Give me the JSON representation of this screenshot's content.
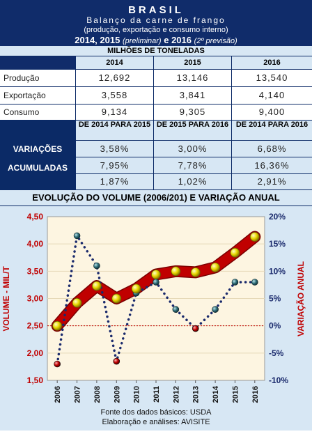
{
  "header": {
    "title": "BRASIL",
    "subtitle": "Balanço da carne de frango",
    "subtitle2": "(produção, exportação e consumo interno)",
    "years_a": "2014, 2015",
    "prelim": "(preliminar)",
    "conj": "e",
    "years_b": "2016",
    "prev": "(2º previsão)",
    "units": "MILHÕES DE TONELADAS"
  },
  "table": {
    "columns": [
      "2014",
      "2015",
      "2016"
    ],
    "rows": [
      {
        "label": "Produção",
        "values": [
          "12,692",
          "13,146",
          "13,540"
        ]
      },
      {
        "label": "Exportação",
        "values": [
          "3,558",
          "3,841",
          "4,140"
        ]
      },
      {
        "label": "Consumo",
        "values": [
          "9,134",
          "9,305",
          "9,400"
        ]
      }
    ],
    "var_headers": [
      "DE 2014 PARA 2015",
      "DE 2015 PARA 2016",
      "DE 2014 PARA 2016"
    ],
    "var_labels": [
      "VARIAÇÕES",
      "ACUMULADAS"
    ],
    "var_rows": [
      [
        "3,58%",
        "3,00%",
        "6,68%"
      ],
      [
        "7,95%",
        "7,78%",
        "16,36%"
      ],
      [
        "1,87%",
        "1,02%",
        "2,91%"
      ]
    ]
  },
  "chart_data": {
    "type": "line",
    "title": "EVOLUÇÃO DO VOLUME (2006/201) E VARIAÇÃO ANUAL",
    "x": [
      "2006",
      "2007",
      "2008",
      "2009",
      "2010",
      "2011",
      "2012",
      "2013",
      "2014",
      "2015",
      "2016"
    ],
    "ylabel": "VOLUME - MIL/T",
    "y2label": "VARIAÇÃO ANUAL",
    "ylim": [
      1.5,
      4.5
    ],
    "y_ticks": [
      "1,50",
      "2,00",
      "2,50",
      "3,00",
      "3,50",
      "4,00",
      "4,50"
    ],
    "y2lim": [
      -10,
      20
    ],
    "y2_ticks": [
      "-10%",
      "-5%",
      "0%",
      "5%",
      "10%",
      "15%",
      "20%"
    ],
    "series": [
      {
        "values": [
          2.5,
          2.92,
          3.23,
          3.0,
          3.18,
          3.44,
          3.5,
          3.48,
          3.57,
          3.84,
          4.13
        ]
      },
      {
        "values": [
          -7.0,
          16.5,
          11.0,
          -6.5,
          6.0,
          8.0,
          3.0,
          -0.5,
          3.0,
          8.0,
          8.0
        ]
      }
    ],
    "colors": {
      "band": "#c00000",
      "volume_marker": "#e8d800",
      "variation_dots": "#1a2a6c",
      "variation_marker": "#2f6f7a",
      "negative_marker": "#c00000",
      "plot_bg": "#fdf5e1",
      "zero_line": "#c00000"
    }
  },
  "footer": {
    "line1": "Fonte dos dados básicos: USDA",
    "line2": "Elaboração e análises: AVISITE"
  }
}
